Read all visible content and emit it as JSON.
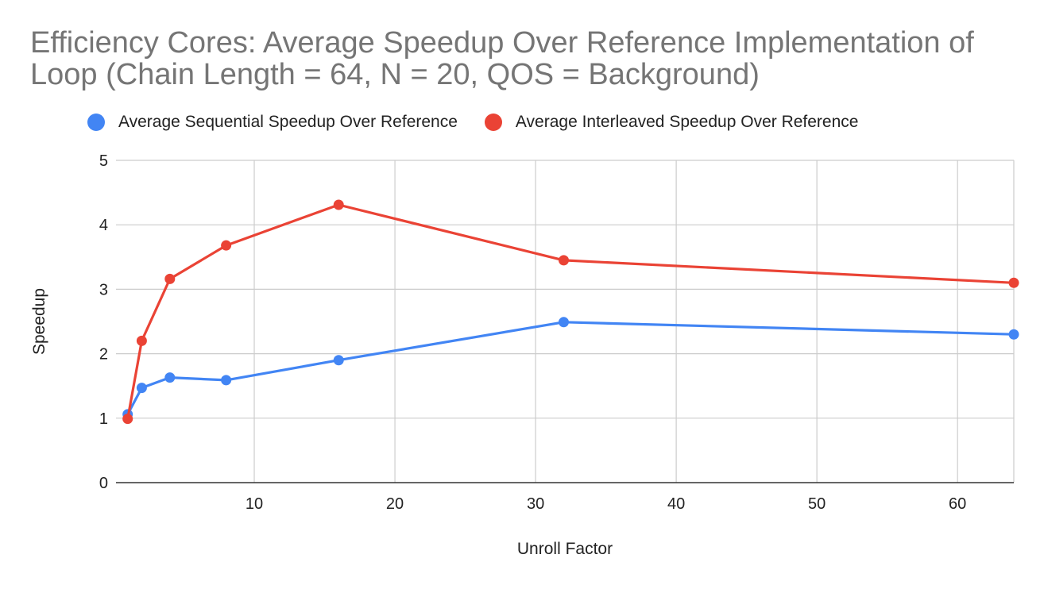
{
  "chart_data": {
    "type": "line",
    "title": "Efficiency Cores: Average Speedup Over Reference Implementation of Loop (Chain Length = 64, N = 20, QOS = Background)",
    "xlabel": "Unroll Factor",
    "ylabel": "Speedup",
    "xlim": [
      0,
      64
    ],
    "ylim": [
      0,
      5
    ],
    "xticks": [
      10,
      20,
      30,
      40,
      50,
      60
    ],
    "yticks": [
      0,
      1,
      2,
      3,
      4,
      5
    ],
    "grid": true,
    "legend_position": "top",
    "x": [
      1,
      2,
      4,
      8,
      16,
      32,
      64
    ],
    "series": [
      {
        "name": "Average Sequential Speedup Over Reference",
        "color": "#4285f4",
        "values": [
          1.06,
          1.47,
          1.63,
          1.59,
          1.9,
          2.49,
          2.3
        ]
      },
      {
        "name": "Average Interleaved Speedup Over Reference",
        "color": "#ea4335",
        "values": [
          0.99,
          2.2,
          3.16,
          3.68,
          4.31,
          3.45,
          3.1
        ]
      }
    ]
  }
}
